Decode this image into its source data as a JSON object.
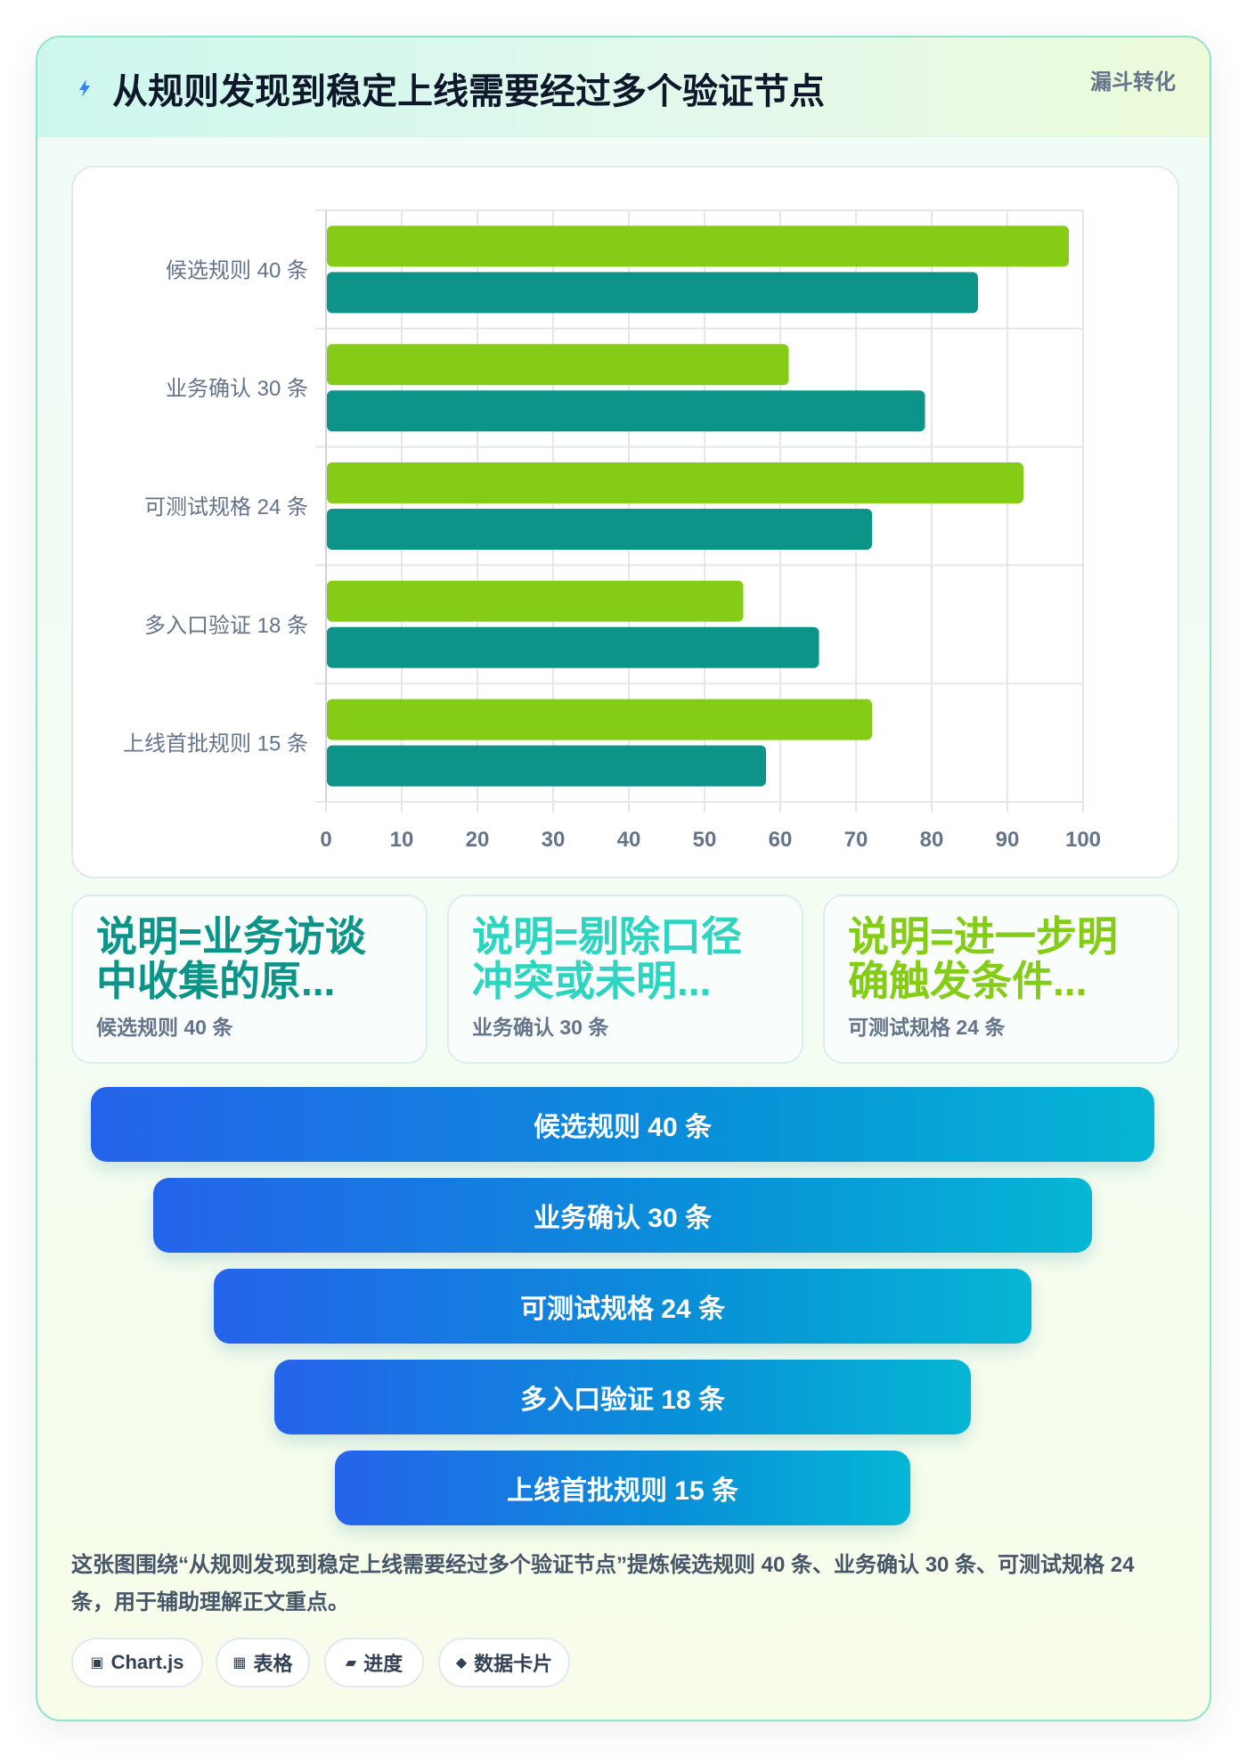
{
  "header": {
    "title": "从规则发现到稳定上线需要经过多个验证节点",
    "tag": "漏斗转化"
  },
  "chart_data": {
    "type": "bar",
    "orientation": "horizontal",
    "categories": [
      "候选规则 40 条",
      "业务确认 30 条",
      "可测试规格 24 条",
      "多入口验证 18 条",
      "上线首批规则 15 条"
    ],
    "series": [
      {
        "color": "#84cc16",
        "values": [
          98,
          61,
          92,
          55,
          72
        ]
      },
      {
        "color": "#0d9488",
        "values": [
          86,
          79,
          72,
          65,
          58
        ]
      }
    ],
    "xlim": [
      0,
      100
    ],
    "xticks": [
      0,
      10,
      20,
      30,
      40,
      50,
      60,
      70,
      80,
      90,
      100
    ],
    "grid": true,
    "legend": "none"
  },
  "stats": [
    {
      "value": "说明=业务访谈中收集的原...",
      "label": "候选规则 40 条",
      "color": "#0d9488"
    },
    {
      "value": "说明=剔除口径冲突或未明...",
      "label": "业务确认 30 条",
      "color": "#2dd4bf"
    },
    {
      "value": "说明=进一步明确触发条件...",
      "label": "可测试规格 24 条",
      "color": "#84cc16"
    }
  ],
  "funnel": [
    {
      "label": "候选规则 40 条"
    },
    {
      "label": "业务确认 30 条"
    },
    {
      "label": "可测试规格 24 条"
    },
    {
      "label": "多入口验证 18 条"
    },
    {
      "label": "上线首批规则 15 条"
    }
  ],
  "summary": "这张图围绕“从规则发现到稳定上线需要经过多个验证节点”提炼候选规则 40 条、业务确认 30 条、可测试规格 24 条，用于辅助理解正文重点。",
  "chips": [
    {
      "icon": "▣",
      "icon_name": "chart-icon",
      "label": "Chart.js"
    },
    {
      "icon": "▦",
      "icon_name": "table-icon",
      "label": "表格"
    },
    {
      "icon": "▰",
      "icon_name": "progress-icon",
      "label": "进度"
    },
    {
      "icon": "◆",
      "icon_name": "diamond-icon",
      "label": "数据卡片"
    }
  ],
  "colors": {
    "accent_green": "#84cc16",
    "accent_teal": "#0d9488",
    "funnel_start": "#2563eb",
    "funnel_end": "#06b6d4"
  }
}
